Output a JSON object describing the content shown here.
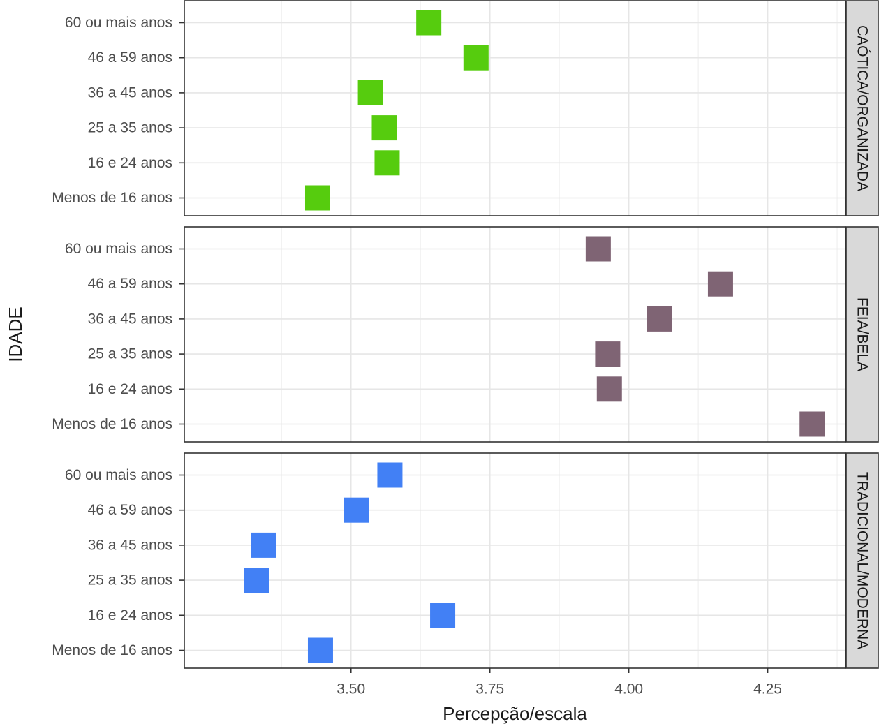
{
  "chart_data": {
    "type": "scatter",
    "xlabel": "Percepção/escala",
    "ylabel": "IDADE",
    "xlim": [
      3.2,
      4.39
    ],
    "x_ticks": [
      3.5,
      3.75,
      4.0,
      4.25
    ],
    "x_tick_labels": [
      "3.50",
      "3.75",
      "4.00",
      "4.25"
    ],
    "categories": [
      "Menos de 16 anos",
      "16 e 24 anos",
      "25 a 35 anos",
      "36 a 45 anos",
      "46 a 59  anos",
      "60 ou mais anos"
    ],
    "grid": true,
    "legend": "none",
    "panels": [
      {
        "name": "CAÓTICA/ORGANIZADA",
        "color": "#56cc0e",
        "values": [
          3.44,
          3.565,
          3.56,
          3.535,
          3.725,
          3.64
        ]
      },
      {
        "name": "FEIA/BELA",
        "color": "#7f6474",
        "values": [
          4.33,
          3.965,
          3.962,
          4.055,
          4.165,
          3.945
        ]
      },
      {
        "name": "TRADICIONAL/MODERNA",
        "color": "#4280f5",
        "values": [
          3.445,
          3.665,
          3.33,
          3.342,
          3.51,
          3.57
        ]
      }
    ]
  }
}
